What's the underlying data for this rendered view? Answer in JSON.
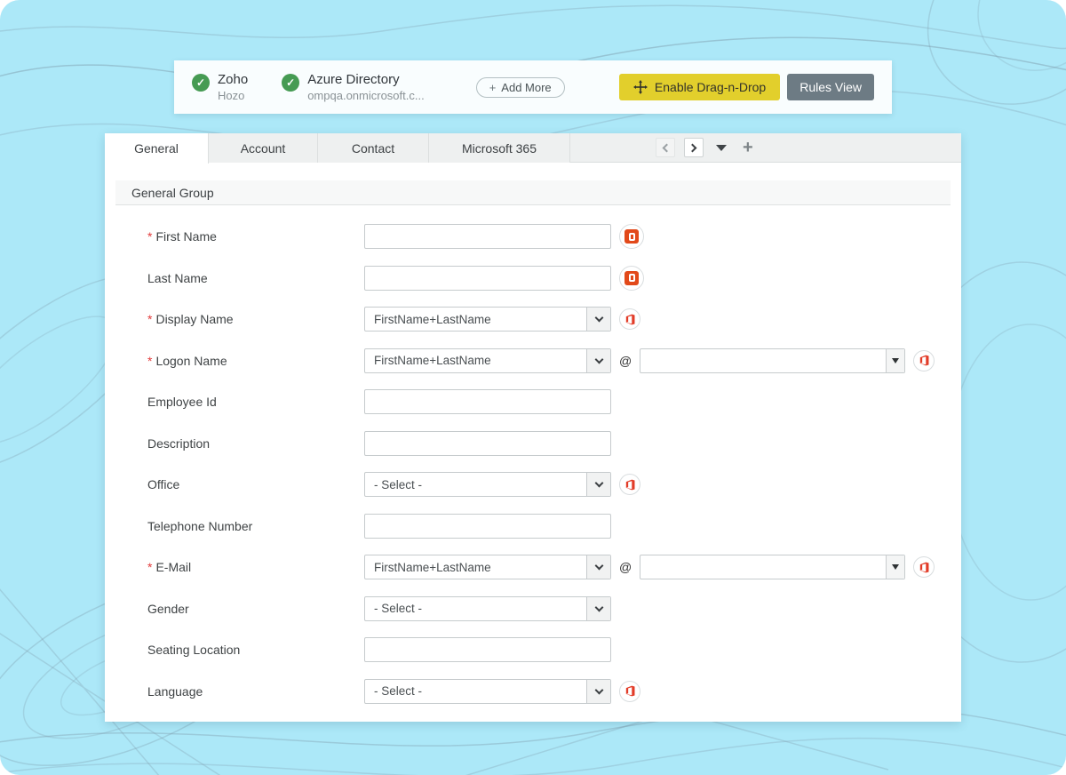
{
  "topbar": {
    "sources": [
      {
        "name": "Zoho",
        "sub": "Hozo"
      },
      {
        "name": "Azure Directory",
        "sub": "ompqa.onmicrosoft.c..."
      }
    ],
    "add_more_plus": "+",
    "add_more_label": "Add More",
    "drag_drop_label": "Enable Drag-n-Drop",
    "rules_view_label": "Rules View"
  },
  "tabs": {
    "items": [
      {
        "label": "General",
        "active": true
      },
      {
        "label": "Account",
        "active": false
      },
      {
        "label": "Contact",
        "active": false
      },
      {
        "label": "Microsoft 365",
        "active": false
      }
    ]
  },
  "panel": {
    "group_title": "General Group",
    "required_marker": "*",
    "at_symbol": "@",
    "rows": [
      {
        "label": "First Name",
        "required": true,
        "type": "text",
        "value": "",
        "office": "filled"
      },
      {
        "label": "Last Name",
        "required": false,
        "type": "text",
        "value": "",
        "office": "filled"
      },
      {
        "label": "Display Name",
        "required": true,
        "type": "select",
        "value": "FirstName+LastName",
        "office": "outline"
      },
      {
        "label": "Logon Name",
        "required": true,
        "type": "select-domain",
        "value": "FirstName+LastName",
        "domain_value": "",
        "office": "outline"
      },
      {
        "label": "Employee Id",
        "required": false,
        "type": "text",
        "value": "",
        "office": "none"
      },
      {
        "label": "Description",
        "required": false,
        "type": "text",
        "value": "",
        "office": "none"
      },
      {
        "label": "Office",
        "required": false,
        "type": "select",
        "value": "- Select -",
        "office": "outline"
      },
      {
        "label": "Telephone Number",
        "required": false,
        "type": "text",
        "value": "",
        "office": "none"
      },
      {
        "label": "E-Mail",
        "required": true,
        "type": "select-domain",
        "value": "FirstName+LastName",
        "domain_value": "",
        "office": "outline"
      },
      {
        "label": "Gender",
        "required": false,
        "type": "select",
        "value": "- Select -",
        "office": "none"
      },
      {
        "label": "Seating Location",
        "required": false,
        "type": "text",
        "value": "",
        "office": "none"
      },
      {
        "label": "Language",
        "required": false,
        "type": "select",
        "value": "- Select -",
        "office": "outline"
      }
    ]
  },
  "colors": {
    "background": "#ace8f8",
    "contour_line": "#7d98a8",
    "accent_yellow": "#e2cf2c",
    "slate_button": "#6d7b84",
    "success_green": "#469b53",
    "office_red": "#e23c28",
    "office_orange": "#e2491a",
    "required_red": "#e23b3b"
  }
}
